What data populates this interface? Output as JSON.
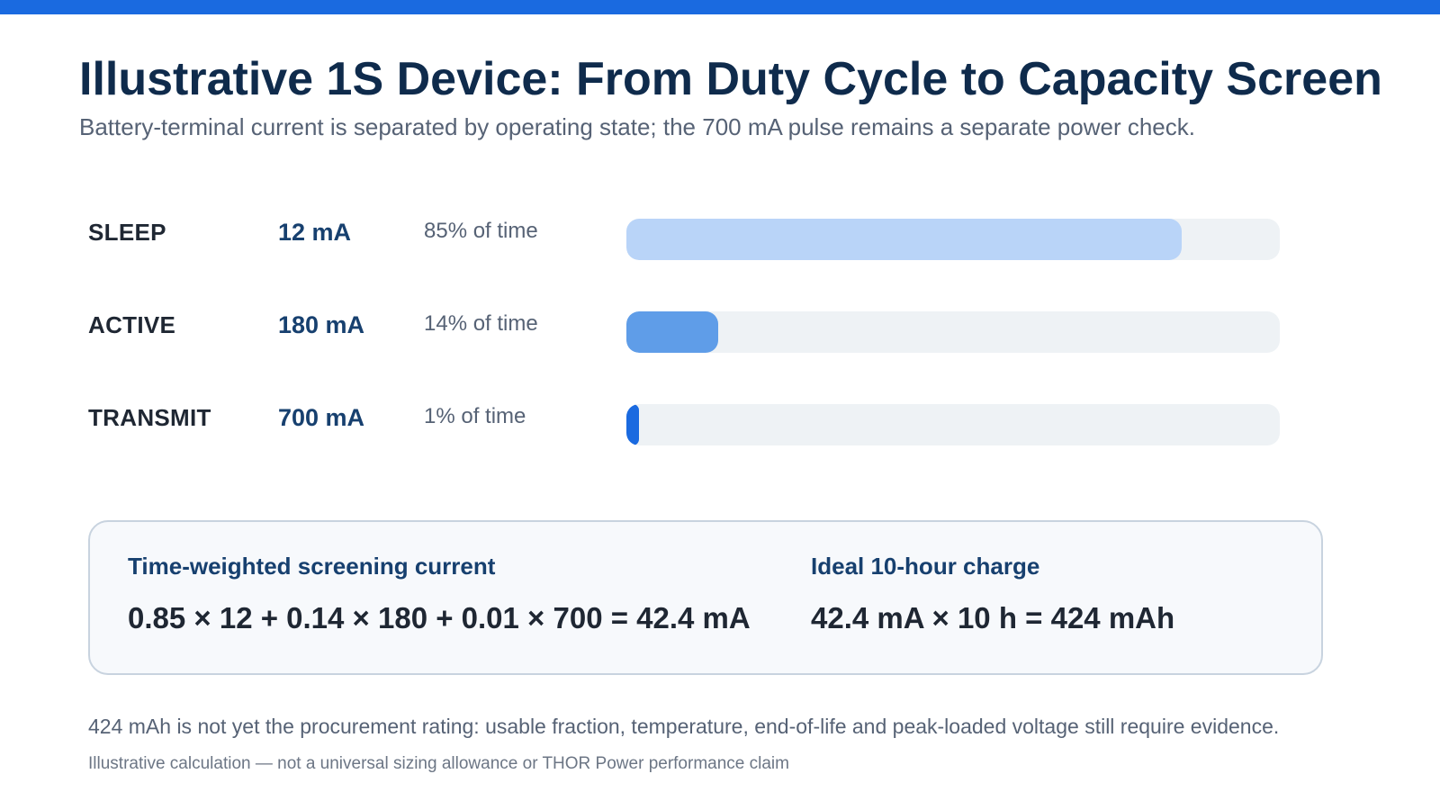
{
  "header": {
    "title": "Illustrative 1S Device: From Duty Cycle to Capacity Screen",
    "subtitle": "Battery-terminal current is separated by operating state; the 700 mA pulse remains a separate power check."
  },
  "colors": {
    "accent_bar": "#1a6ae0",
    "sleep_fill": "#b9d4f8",
    "active_fill": "#5f9de8",
    "transmit_fill": "#1a6ae0",
    "track": "#eef2f5"
  },
  "states": [
    {
      "label": "SLEEP",
      "current": "12 mA",
      "share_text": "85% of time",
      "fraction": 0.85
    },
    {
      "label": "ACTIVE",
      "current": "180 mA",
      "share_text": "14% of time",
      "fraction": 0.14
    },
    {
      "label": "TRANSMIT",
      "current": "700 mA",
      "share_text": "1% of time",
      "fraction": 0.01
    }
  ],
  "summary": {
    "weighted_label": "Time-weighted screening current",
    "weighted_formula": "0.85 × 12 + 0.14 × 180 + 0.01 × 700 = 42.4 mA",
    "charge_label": "Ideal 10-hour charge",
    "charge_formula": "42.4 mA × 10 h = 424 mAh"
  },
  "footnote": "424 mAh is not yet the procurement rating: usable fraction, temperature, end-of-life and peak-loaded voltage still require evidence.",
  "disclaimer": "Illustrative calculation — not a universal sizing allowance or THOR Power performance claim"
}
